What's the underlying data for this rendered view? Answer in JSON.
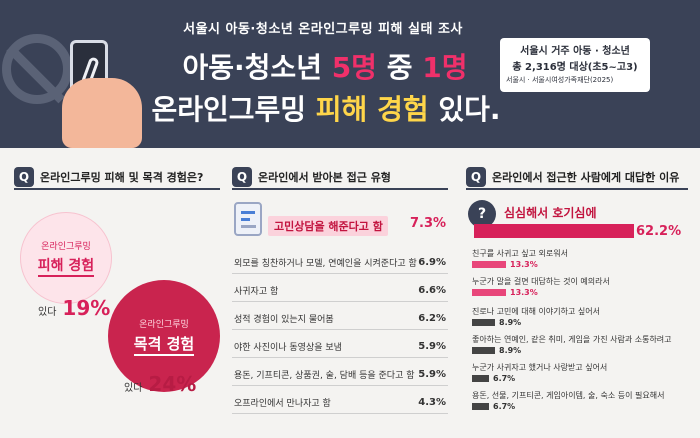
{
  "banner": {
    "subtitle": "서울시 아동·청소년 온라인그루밍 피해 실태 조사",
    "title_prefix": "아동·청소년 ",
    "title_hl1": "5명",
    "title_mid": " 중 ",
    "title_hl2": "1명",
    "title2_prefix": "온라인그루밍 ",
    "title2_hl": "피해 경험",
    "title2_suffix": " 있다.",
    "info_line1": "서울시 거주 아동 · 청소년",
    "info_line2": "총 2,316명 대상(초5~고3)",
    "info_src": "서울시 · 서울시여성가족재단(2025)",
    "icons": {
      "prohibit": "prohibit-icon",
      "phone": "phone-icon",
      "hand": "hand-icon"
    }
  },
  "sections": [
    {
      "badge": "Q",
      "title": "온라인그루밍 피해 및 목격 경험은?"
    },
    {
      "badge": "Q",
      "title": "온라인에서 받아본 접근 유형"
    },
    {
      "badge": "Q",
      "title": "온라인에서 접근한 사람에게 대답한 이유"
    }
  ],
  "experience": {
    "victim": {
      "small": "온라인그루밍",
      "large": "피해 경험",
      "label": "있다",
      "value": "19%"
    },
    "witness": {
      "small": "온라인그루밍",
      "large": "목격 경험",
      "label": "있다",
      "value": "24%"
    }
  },
  "approach": {
    "top": {
      "label": "고민상담을 해준다고 함",
      "value": "7.3%"
    },
    "items": [
      {
        "label": "외모를 칭찬하거나 모델, 연예인을 시켜준다고 함",
        "value": "6.9%"
      },
      {
        "label": "사귀자고 함",
        "value": "6.6%"
      },
      {
        "label": "성적 경험이 있는지 물어봄",
        "value": "6.2%"
      },
      {
        "label": "야한 사진이나 동영상을 보냄",
        "value": "5.9%"
      },
      {
        "label": "용돈, 기프티콘, 상품권, 술, 담배 등을 준다고 함",
        "value": "5.9%"
      },
      {
        "label": "오프라인에서 만나자고 함",
        "value": "4.3%"
      }
    ]
  },
  "reasons": {
    "top": {
      "label": "심심해서 호기심에",
      "value": "62.2%",
      "pct": 62.2
    },
    "items": [
      {
        "label": "친구를 사귀고 싶고 외로워서",
        "value": "13.3%",
        "pct": 13.3,
        "style": "pink"
      },
      {
        "label": "누군가 말을 걸면 대답하는 것이 예의라서",
        "value": "13.3%",
        "pct": 13.3,
        "style": "pink"
      },
      {
        "label": "진로나 고민에 대해 이야기하고 싶어서",
        "value": "8.9%",
        "pct": 8.9,
        "style": "dark"
      },
      {
        "label": "좋아하는 연예인, 같은 취미, 게임을 가진 사람과 소통하려고",
        "value": "8.9%",
        "pct": 8.9,
        "style": "dark"
      },
      {
        "label": "누군가 사귀자고 했거나 사랑받고 싶어서",
        "value": "6.7%",
        "pct": 6.7,
        "style": "dark"
      },
      {
        "label": "용돈, 선물, 기프티콘, 게임아이템, 술, 숙소 등이 필요해서",
        "value": "6.7%",
        "pct": 6.7,
        "style": "dark"
      }
    ]
  },
  "colors": {
    "navy": "#3a4257",
    "pink": "#d7215a",
    "yellow": "#ffd64a"
  }
}
